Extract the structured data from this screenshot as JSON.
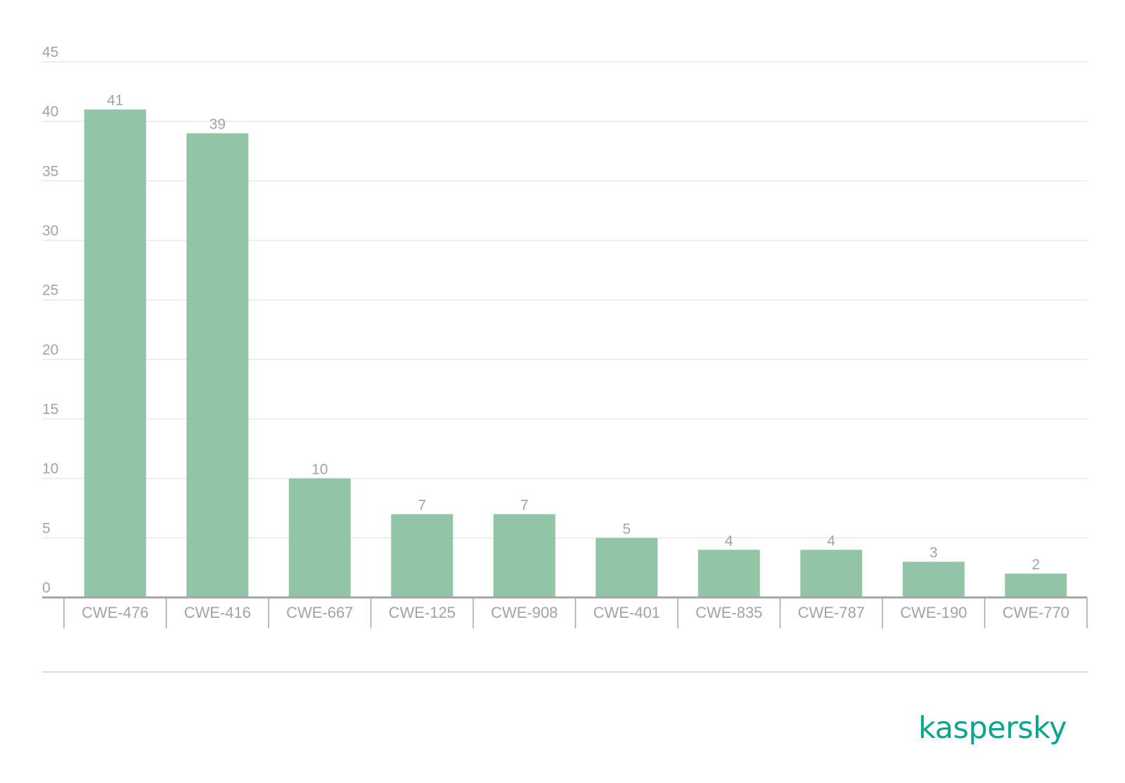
{
  "chart_data": {
    "type": "bar",
    "title": "",
    "xlabel": "",
    "ylabel": "",
    "categories": [
      "CWE-476",
      "CWE-416",
      "CWE-667",
      "CWE-125",
      "CWE-908",
      "CWE-401",
      "CWE-835",
      "CWE-787",
      "CWE-190",
      "CWE-770"
    ],
    "values": [
      41,
      39,
      10,
      7,
      7,
      5,
      4,
      4,
      3,
      2
    ],
    "ylim": [
      0,
      45
    ],
    "yticks": [
      0,
      5,
      10,
      15,
      20,
      25,
      30,
      35,
      40,
      45
    ],
    "grid": true,
    "legend": "none",
    "show_data_labels": true
  },
  "colors": {
    "bar": "#92c4a6",
    "grid": "#e8e8e8",
    "axis": "#a6a6a6",
    "text": "#a3a3a3",
    "brand": "#0aa58e"
  },
  "brand": {
    "logo_text": "kaspersky"
  }
}
